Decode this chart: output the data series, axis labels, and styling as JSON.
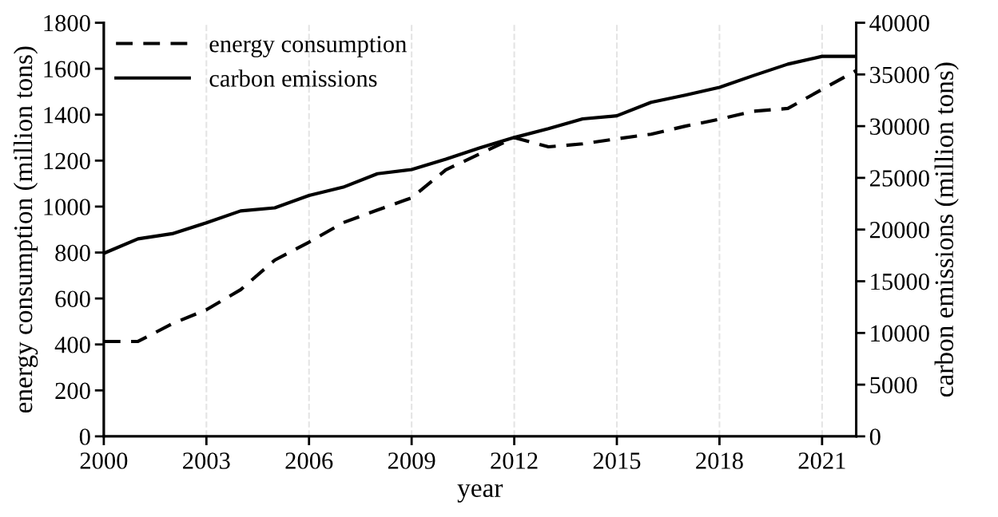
{
  "chart_data": {
    "type": "line",
    "xlabel": "year",
    "ylabel": "energy consumption (million tons)",
    "y2label": "carbon emissions (million tons)",
    "x": [
      2000,
      2001,
      2002,
      2003,
      2004,
      2005,
      2006,
      2007,
      2008,
      2009,
      2010,
      2011,
      2012,
      2013,
      2014,
      2015,
      2016,
      2017,
      2018,
      2019,
      2020,
      2021,
      2022
    ],
    "series": [
      {
        "name": "energy consumption",
        "color": "#000000",
        "line_style": "dashed",
        "values": [
          413,
          413,
          490,
          551,
          638,
          767,
          845,
          930,
          985,
          1038,
          1160,
          1230,
          1300,
          1260,
          1273,
          1295,
          1315,
          1350,
          1380,
          1415,
          1427,
          1510,
          1592
        ]
      },
      {
        "name": "carbon emissions",
        "color": "#000000",
        "line_style": "solid",
        "axis": "y2",
        "values": [
          17700,
          19100,
          19600,
          20650,
          21800,
          22100,
          23300,
          24100,
          25400,
          25800,
          26800,
          27900,
          28900,
          29750,
          30700,
          31000,
          32300,
          33000,
          33750,
          34900,
          36000,
          36750,
          36750
        ]
      }
    ],
    "xlim": [
      2000,
      2022
    ],
    "xticks": [
      2000,
      2003,
      2006,
      2009,
      2012,
      2015,
      2018,
      2021
    ],
    "ylim": [
      0,
      1800
    ],
    "yticks": [
      0,
      200,
      400,
      600,
      800,
      1000,
      1200,
      1400,
      1600,
      1800
    ],
    "y2lim": [
      0,
      40000
    ],
    "y2ticks": [
      0,
      5000,
      10000,
      15000,
      20000,
      25000,
      30000,
      35000,
      40000
    ],
    "grid": "x",
    "legend": "top left",
    "marker": "none"
  }
}
